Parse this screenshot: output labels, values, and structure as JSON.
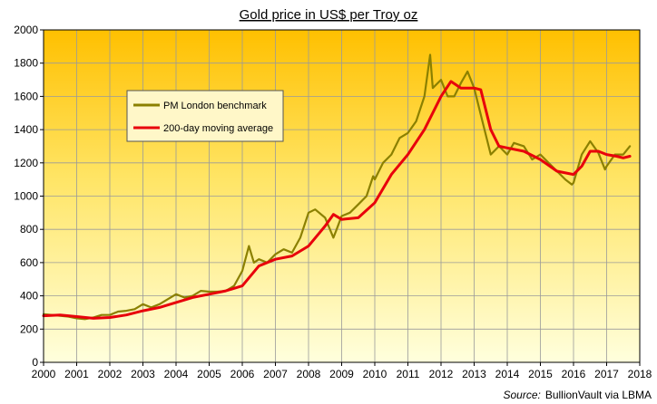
{
  "chart_data": {
    "type": "line",
    "title": "Gold price in US$ per Troy  oz",
    "xlabel": "",
    "ylabel": "",
    "xlim": [
      2000,
      2018
    ],
    "ylim": [
      0,
      2000
    ],
    "x_ticks": [
      "2000",
      "2001",
      "2002",
      "2003",
      "2004",
      "2005",
      "2006",
      "2007",
      "2008",
      "2009",
      "2010",
      "2011",
      "2012",
      "2013",
      "2014",
      "2015",
      "2016",
      "2017",
      "2018"
    ],
    "y_ticks": [
      "0",
      "200",
      "400",
      "600",
      "800",
      "1000",
      "1200",
      "1400",
      "1600",
      "1800",
      "2000"
    ],
    "grid": true,
    "legend_position": "upper-left-inside",
    "source_prefix": "Source:",
    "source_text": "BullionVault via LBMA",
    "series": [
      {
        "name": "PM London benchmark",
        "color": "#8B8000",
        "x": [
          2000.0,
          2000.25,
          2000.5,
          2000.75,
          2001.0,
          2001.25,
          2001.5,
          2001.75,
          2002.0,
          2002.25,
          2002.5,
          2002.75,
          2003.0,
          2003.25,
          2003.5,
          2003.75,
          2004.0,
          2004.25,
          2004.5,
          2004.75,
          2005.0,
          2005.25,
          2005.5,
          2005.75,
          2006.0,
          2006.2,
          2006.35,
          2006.5,
          2006.75,
          2007.0,
          2007.25,
          2007.5,
          2007.75,
          2008.0,
          2008.2,
          2008.5,
          2008.75,
          2008.85,
          2009.0,
          2009.25,
          2009.5,
          2009.75,
          2009.95,
          2010.0,
          2010.25,
          2010.5,
          2010.75,
          2011.0,
          2011.25,
          2011.5,
          2011.67,
          2011.75,
          2012.0,
          2012.2,
          2012.4,
          2012.6,
          2012.8,
          2013.0,
          2013.25,
          2013.5,
          2013.75,
          2014.0,
          2014.2,
          2014.5,
          2014.75,
          2015.0,
          2015.25,
          2015.5,
          2015.75,
          2015.95,
          2016.0,
          2016.25,
          2016.5,
          2016.75,
          2016.95,
          2017.0,
          2017.25,
          2017.5,
          2017.7
        ],
        "values": [
          290,
          285,
          280,
          275,
          265,
          260,
          270,
          285,
          285,
          305,
          310,
          320,
          350,
          330,
          350,
          380,
          410,
          390,
          400,
          430,
          425,
          425,
          430,
          460,
          550,
          700,
          600,
          620,
          600,
          650,
          680,
          660,
          750,
          900,
          920,
          870,
          750,
          800,
          880,
          900,
          950,
          1000,
          1120,
          1100,
          1200,
          1250,
          1350,
          1380,
          1450,
          1600,
          1850,
          1650,
          1700,
          1600,
          1600,
          1680,
          1750,
          1650,
          1450,
          1250,
          1300,
          1250,
          1320,
          1300,
          1220,
          1250,
          1200,
          1150,
          1100,
          1070,
          1080,
          1250,
          1330,
          1260,
          1160,
          1180,
          1250,
          1250,
          1300
        ]
      },
      {
        "name": "200-day moving average",
        "color": "#E8000B",
        "x": [
          2000.0,
          2000.5,
          2001.0,
          2001.5,
          2002.0,
          2002.5,
          2003.0,
          2003.5,
          2004.0,
          2004.5,
          2005.0,
          2005.5,
          2006.0,
          2006.5,
          2007.0,
          2007.5,
          2008.0,
          2008.5,
          2008.75,
          2009.0,
          2009.5,
          2010.0,
          2010.5,
          2011.0,
          2011.5,
          2012.0,
          2012.3,
          2012.6,
          2013.0,
          2013.2,
          2013.5,
          2013.75,
          2014.0,
          2014.5,
          2015.0,
          2015.5,
          2016.0,
          2016.25,
          2016.5,
          2016.75,
          2017.0,
          2017.3,
          2017.5,
          2017.7
        ],
        "values": [
          280,
          285,
          275,
          265,
          270,
          285,
          310,
          330,
          360,
          390,
          410,
          430,
          460,
          580,
          620,
          640,
          700,
          820,
          890,
          860,
          870,
          960,
          1130,
          1250,
          1400,
          1600,
          1690,
          1650,
          1650,
          1640,
          1400,
          1300,
          1290,
          1270,
          1220,
          1150,
          1130,
          1180,
          1270,
          1270,
          1250,
          1240,
          1230,
          1240
        ]
      }
    ]
  }
}
